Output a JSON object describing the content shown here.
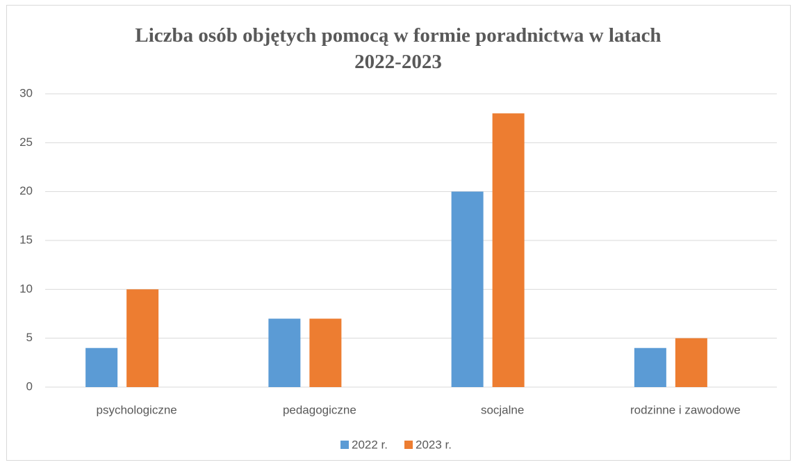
{
  "chart_data": {
    "type": "bar",
    "title": "Liczba osób objętych pomocą w formie poradnictwa w latach 2022-2023",
    "categories": [
      "psychologiczne",
      "pedagogiczne",
      "socjalne",
      "rodzinne i zawodowe"
    ],
    "series": [
      {
        "name": "2022 r.",
        "color": "#5b9bd5",
        "values": [
          4,
          7,
          20,
          4
        ]
      },
      {
        "name": "2023 r.",
        "color": "#ed7d31",
        "values": [
          10,
          7,
          28,
          5
        ]
      }
    ],
    "ylim": [
      0,
      30
    ],
    "yticks": [
      0,
      5,
      10,
      15,
      20,
      25,
      30
    ],
    "grid": true,
    "legend": "bottom"
  }
}
